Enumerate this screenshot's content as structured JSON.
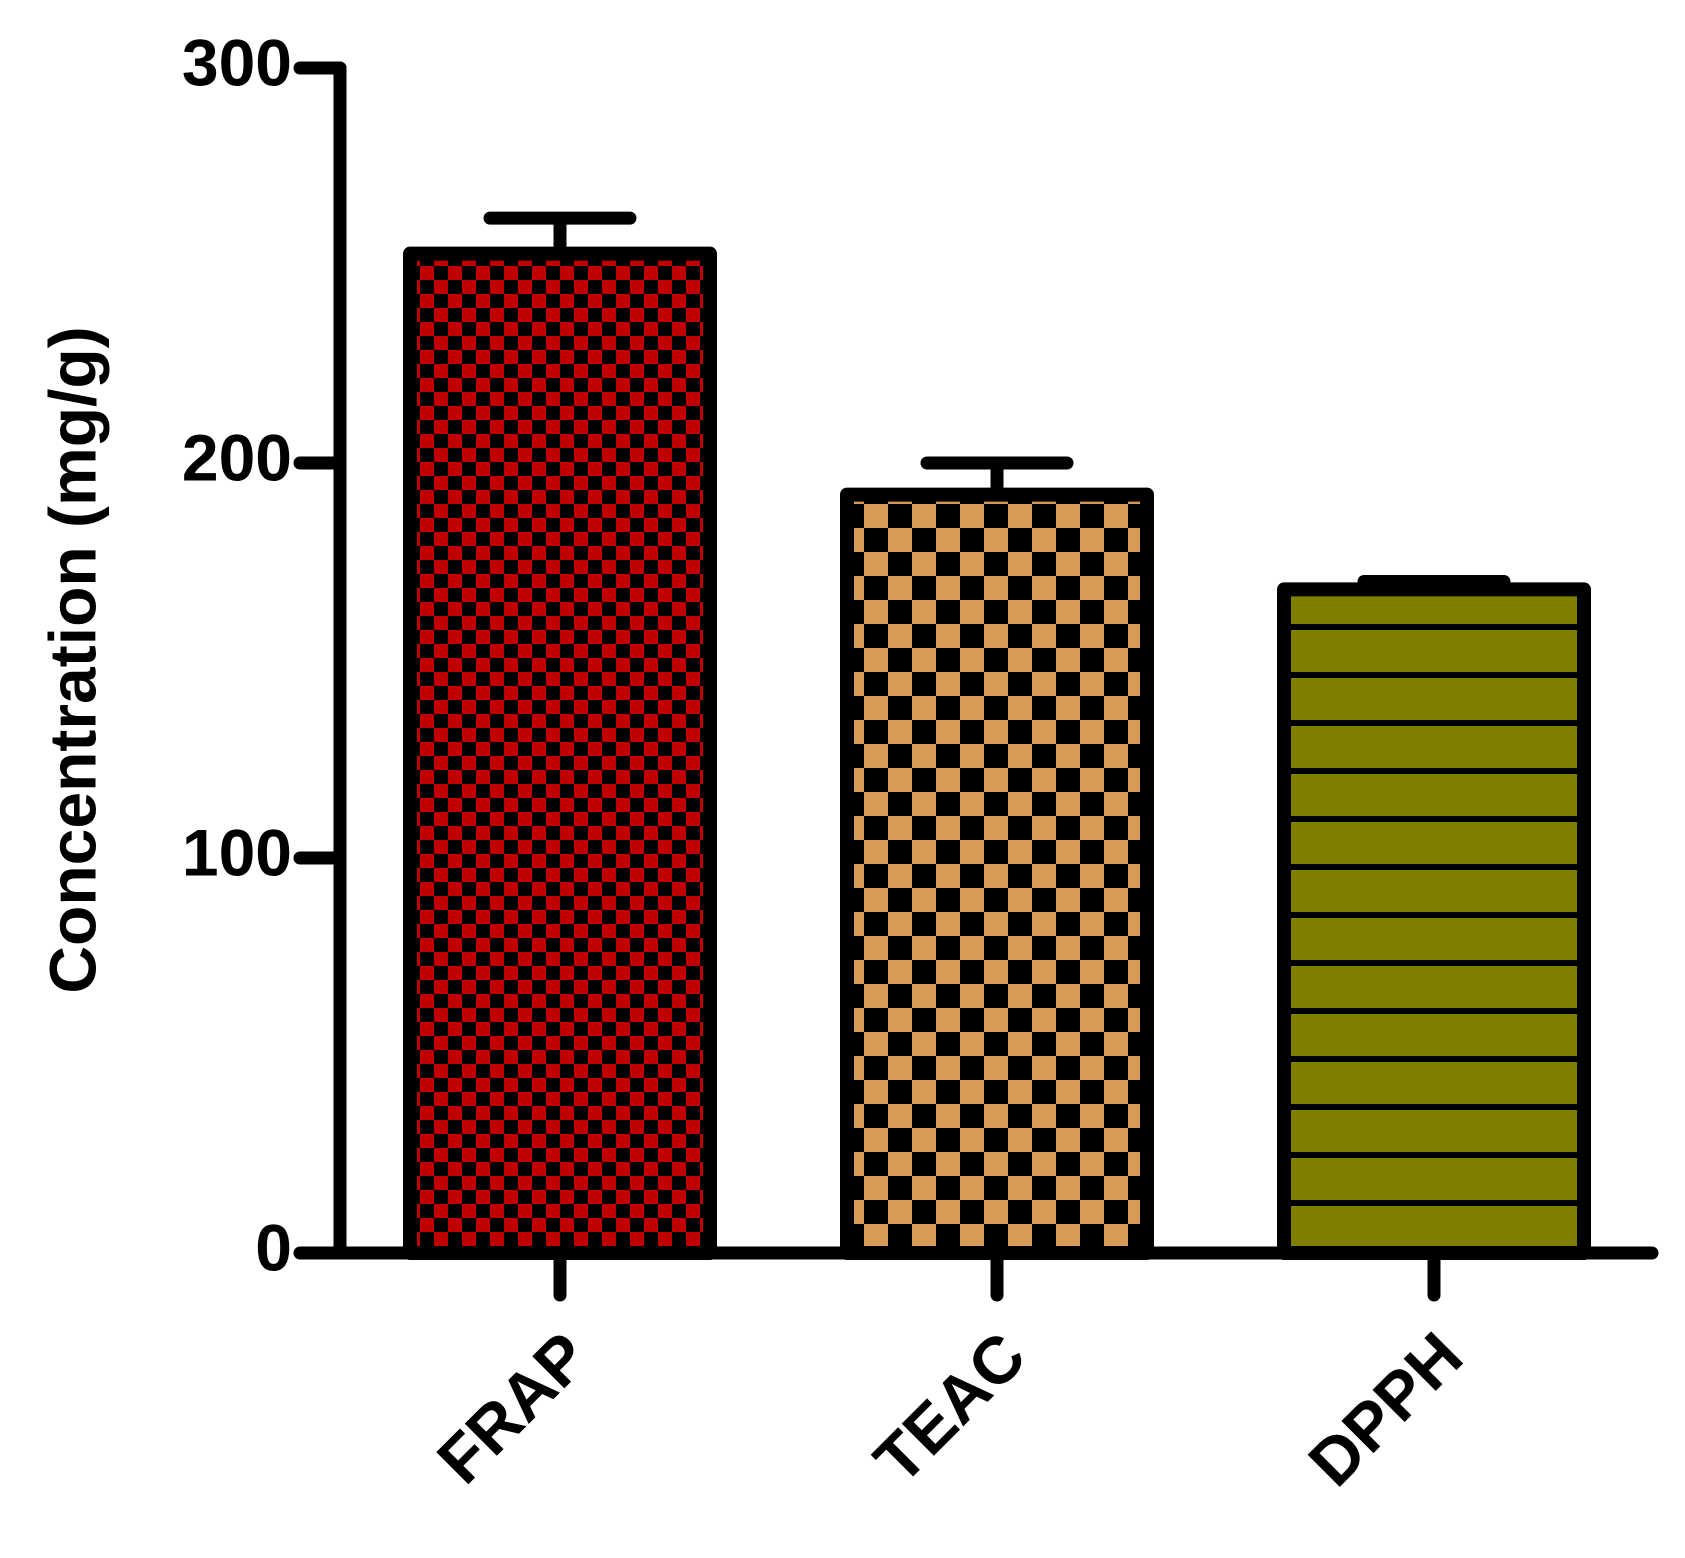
{
  "chart_data": {
    "type": "bar",
    "y_label": "Concentration (mg/g)",
    "categories": [
      "FRAP",
      "TEAC",
      "DPPH"
    ],
    "values": [
      253,
      192,
      168
    ],
    "errors": [
      9,
      8,
      2
    ],
    "colors": [
      "#c00000",
      "#d99a55",
      "#7f7f00"
    ],
    "ylim": [
      0,
      300
    ],
    "yticks": [
      0,
      100,
      200,
      300
    ]
  }
}
